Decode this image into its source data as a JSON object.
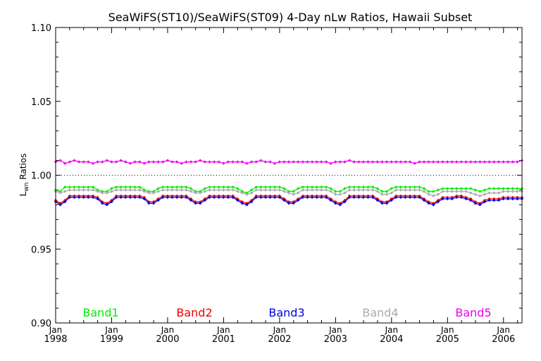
{
  "chart_data": {
    "type": "line",
    "title": "SeaWiFS(ST10)/SeaWiFS(ST09) 4-Day nLw Ratios, Hawaii Subset",
    "ylabel": {
      "main": "L",
      "sub": "wn",
      "rest": " Ratios"
    },
    "ylim": [
      0.9,
      1.1
    ],
    "yticks": [
      "0.90",
      "0.95",
      "1.00",
      "1.05",
      "1.10"
    ],
    "xlim": [
      1998.0,
      2006.33
    ],
    "xticks": [
      {
        "month": "Jan",
        "year": "1998",
        "x": 1998
      },
      {
        "month": "Jan",
        "year": "1999",
        "x": 1999
      },
      {
        "month": "Jan",
        "year": "2000",
        "x": 2000
      },
      {
        "month": "Jan",
        "year": "2001",
        "x": 2001
      },
      {
        "month": "Jan",
        "year": "2002",
        "x": 2002
      },
      {
        "month": "Jan",
        "year": "2003",
        "x": 2003
      },
      {
        "month": "Jan",
        "year": "2004",
        "x": 2004
      },
      {
        "month": "Jan",
        "year": "2005",
        "x": 2005
      },
      {
        "month": "Jan",
        "year": "2006",
        "x": 2006
      }
    ],
    "reference_line": 1.0,
    "grid": false,
    "legend": "bottom",
    "series": [
      {
        "name": "Band1",
        "color": "#00ee00",
        "x_start": 1998.0,
        "x_step": 0.0833,
        "values": [
          0.99,
          0.989,
          0.992,
          0.992,
          0.992,
          0.992,
          0.992,
          0.992,
          0.992,
          0.99,
          0.989,
          0.989,
          0.991,
          0.992,
          0.992,
          0.992,
          0.992,
          0.992,
          0.992,
          0.99,
          0.989,
          0.989,
          0.991,
          0.992,
          0.992,
          0.992,
          0.992,
          0.992,
          0.992,
          0.991,
          0.989,
          0.989,
          0.991,
          0.992,
          0.992,
          0.992,
          0.992,
          0.992,
          0.992,
          0.991,
          0.989,
          0.988,
          0.99,
          0.992,
          0.992,
          0.992,
          0.992,
          0.992,
          0.992,
          0.991,
          0.989,
          0.989,
          0.991,
          0.992,
          0.992,
          0.992,
          0.992,
          0.992,
          0.992,
          0.991,
          0.989,
          0.989,
          0.991,
          0.992,
          0.992,
          0.992,
          0.992,
          0.992,
          0.992,
          0.991,
          0.989,
          0.989,
          0.991,
          0.992,
          0.992,
          0.992,
          0.992,
          0.992,
          0.992,
          0.991,
          0.989,
          0.989,
          0.99,
          0.991,
          0.991,
          0.991,
          0.991,
          0.991,
          0.991,
          0.991,
          0.99,
          0.989,
          0.99,
          0.991,
          0.991,
          0.991,
          0.991,
          0.991,
          0.991,
          0.991,
          0.991
        ]
      },
      {
        "name": "Band2",
        "color": "#ee0000",
        "x_start": 1998.0,
        "x_step": 0.0833,
        "values": [
          0.983,
          0.981,
          0.983,
          0.986,
          0.986,
          0.986,
          0.986,
          0.986,
          0.986,
          0.985,
          0.982,
          0.981,
          0.983,
          0.986,
          0.986,
          0.986,
          0.986,
          0.986,
          0.986,
          0.985,
          0.982,
          0.982,
          0.984,
          0.986,
          0.986,
          0.986,
          0.986,
          0.986,
          0.986,
          0.984,
          0.982,
          0.982,
          0.984,
          0.986,
          0.986,
          0.986,
          0.986,
          0.986,
          0.986,
          0.984,
          0.982,
          0.981,
          0.983,
          0.986,
          0.986,
          0.986,
          0.986,
          0.986,
          0.986,
          0.984,
          0.982,
          0.982,
          0.984,
          0.986,
          0.986,
          0.986,
          0.986,
          0.986,
          0.986,
          0.984,
          0.982,
          0.981,
          0.983,
          0.986,
          0.986,
          0.986,
          0.986,
          0.986,
          0.986,
          0.984,
          0.982,
          0.982,
          0.984,
          0.986,
          0.986,
          0.986,
          0.986,
          0.986,
          0.986,
          0.984,
          0.982,
          0.981,
          0.983,
          0.985,
          0.985,
          0.985,
          0.986,
          0.986,
          0.985,
          0.984,
          0.982,
          0.981,
          0.983,
          0.984,
          0.984,
          0.984,
          0.985,
          0.985,
          0.985,
          0.985,
          0.985
        ]
      },
      {
        "name": "Band3",
        "color": "#0000dd",
        "x_start": 1998.0,
        "x_step": 0.0833,
        "values": [
          0.982,
          0.98,
          0.982,
          0.985,
          0.985,
          0.985,
          0.985,
          0.985,
          0.985,
          0.984,
          0.981,
          0.98,
          0.982,
          0.985,
          0.985,
          0.985,
          0.985,
          0.985,
          0.985,
          0.984,
          0.981,
          0.981,
          0.983,
          0.985,
          0.985,
          0.985,
          0.985,
          0.985,
          0.985,
          0.983,
          0.981,
          0.981,
          0.983,
          0.985,
          0.985,
          0.985,
          0.985,
          0.985,
          0.985,
          0.983,
          0.981,
          0.98,
          0.982,
          0.985,
          0.985,
          0.985,
          0.985,
          0.985,
          0.985,
          0.983,
          0.981,
          0.981,
          0.983,
          0.985,
          0.985,
          0.985,
          0.985,
          0.985,
          0.985,
          0.983,
          0.981,
          0.98,
          0.982,
          0.985,
          0.985,
          0.985,
          0.985,
          0.985,
          0.985,
          0.983,
          0.981,
          0.981,
          0.983,
          0.985,
          0.985,
          0.985,
          0.985,
          0.985,
          0.985,
          0.983,
          0.981,
          0.98,
          0.982,
          0.984,
          0.984,
          0.984,
          0.985,
          0.985,
          0.984,
          0.983,
          0.981,
          0.98,
          0.982,
          0.983,
          0.983,
          0.983,
          0.984,
          0.984,
          0.984,
          0.984,
          0.984
        ]
      },
      {
        "name": "Band4",
        "color": "#aaaaaa",
        "x_start": 1998.0,
        "x_step": 0.0833,
        "values": [
          0.989,
          0.988,
          0.989,
          0.99,
          0.99,
          0.99,
          0.99,
          0.99,
          0.99,
          0.989,
          0.988,
          0.988,
          0.989,
          0.99,
          0.99,
          0.99,
          0.99,
          0.99,
          0.99,
          0.989,
          0.988,
          0.988,
          0.989,
          0.99,
          0.99,
          0.99,
          0.99,
          0.99,
          0.99,
          0.989,
          0.988,
          0.988,
          0.989,
          0.99,
          0.99,
          0.99,
          0.99,
          0.99,
          0.99,
          0.989,
          0.988,
          0.987,
          0.988,
          0.99,
          0.99,
          0.99,
          0.99,
          0.99,
          0.99,
          0.989,
          0.988,
          0.987,
          0.988,
          0.99,
          0.99,
          0.99,
          0.99,
          0.99,
          0.99,
          0.989,
          0.987,
          0.987,
          0.988,
          0.99,
          0.99,
          0.99,
          0.99,
          0.99,
          0.99,
          0.989,
          0.987,
          0.987,
          0.988,
          0.99,
          0.99,
          0.99,
          0.99,
          0.99,
          0.99,
          0.989,
          0.987,
          0.986,
          0.987,
          0.989,
          0.989,
          0.989,
          0.989,
          0.989,
          0.989,
          0.988,
          0.987,
          0.986,
          0.987,
          0.988,
          0.988,
          0.988,
          0.989,
          0.989,
          0.989,
          0.989,
          0.989
        ]
      },
      {
        "name": "Band5",
        "color": "#ee00ee",
        "x_start": 1998.0,
        "x_step": 0.0833,
        "values": [
          1.009,
          1.01,
          1.008,
          1.009,
          1.01,
          1.009,
          1.009,
          1.009,
          1.008,
          1.009,
          1.009,
          1.01,
          1.009,
          1.009,
          1.01,
          1.009,
          1.008,
          1.009,
          1.009,
          1.008,
          1.009,
          1.009,
          1.009,
          1.009,
          1.01,
          1.009,
          1.009,
          1.008,
          1.009,
          1.009,
          1.009,
          1.01,
          1.009,
          1.009,
          1.009,
          1.009,
          1.008,
          1.009,
          1.009,
          1.009,
          1.009,
          1.008,
          1.009,
          1.009,
          1.01,
          1.009,
          1.009,
          1.008,
          1.009,
          1.009,
          1.009,
          1.009,
          1.009,
          1.009,
          1.009,
          1.009,
          1.009,
          1.009,
          1.009,
          1.008,
          1.009,
          1.009,
          1.009,
          1.01,
          1.009,
          1.009,
          1.009,
          1.009,
          1.009,
          1.009,
          1.009,
          1.009,
          1.009,
          1.009,
          1.009,
          1.009,
          1.009,
          1.008,
          1.009,
          1.009,
          1.009,
          1.009,
          1.009,
          1.009,
          1.009,
          1.009,
          1.009,
          1.009,
          1.009,
          1.009,
          1.009,
          1.009,
          1.009,
          1.009,
          1.009,
          1.009,
          1.009,
          1.009,
          1.009,
          1.009,
          1.01
        ]
      }
    ]
  }
}
